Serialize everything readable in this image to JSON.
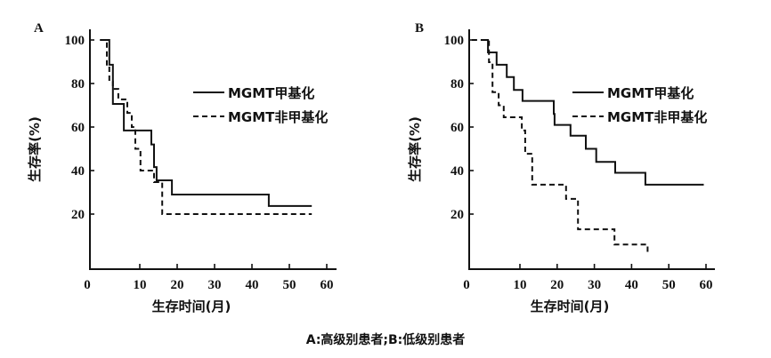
{
  "caption": "A:高级别患者;B:低级别患者",
  "chart_data": [
    {
      "type": "line",
      "subtype": "kaplan-meier-step",
      "panel": "A",
      "title": "",
      "xlabel": "生存时间(月)",
      "ylabel": "生存率(%)",
      "xticks": [
        0,
        10,
        20,
        30,
        40,
        50,
        60
      ],
      "yticks": [
        20,
        40,
        60,
        80,
        100
      ],
      "xlim": [
        0,
        62
      ],
      "ylim": [
        0,
        100
      ],
      "legend_position": "upper right",
      "series": [
        {
          "name": "MGMT甲基化",
          "style": "solid",
          "points": [
            [
              2.0,
              100
            ],
            [
              3.9,
              88.6
            ],
            [
              4.6,
              70.6
            ],
            [
              6.8,
              58.4
            ],
            [
              13.1,
              52
            ],
            [
              13.8,
              41.6
            ],
            [
              14.5,
              35.5
            ],
            [
              18.6,
              29
            ],
            [
              44.5,
              23.7
            ],
            [
              56,
              23.7
            ]
          ]
        },
        {
          "name": "MGMT非甲基化",
          "style": "dashed",
          "points": [
            [
              2.1,
              100
            ],
            [
              3.4,
              88
            ],
            [
              3.9,
              81
            ],
            [
              4.6,
              77.5
            ],
            [
              5.7,
              72.7
            ],
            [
              7.5,
              66.5
            ],
            [
              8.4,
              60
            ],
            [
              9.1,
              50
            ],
            [
              10.2,
              40
            ],
            [
              13.8,
              34.7
            ],
            [
              16,
              20
            ],
            [
              56,
              20
            ]
          ]
        }
      ]
    },
    {
      "type": "line",
      "subtype": "kaplan-meier-step",
      "panel": "B",
      "title": "",
      "xlabel": "生存时间(月)",
      "ylabel": "生存率(%)",
      "xticks": [
        0,
        10,
        20,
        30,
        40,
        50,
        60
      ],
      "yticks": [
        20,
        40,
        60,
        80,
        100
      ],
      "xlim": [
        0,
        62
      ],
      "ylim": [
        0,
        100
      ],
      "legend_position": "upper right",
      "series": [
        {
          "name": "MGMT甲基化",
          "style": "solid",
          "points": [
            [
              2.3,
              100
            ],
            [
              3.7,
              94.3
            ],
            [
              5.4,
              88.6
            ],
            [
              7.4,
              83
            ],
            [
              8.8,
              77
            ],
            [
              10.7,
              72
            ],
            [
              19.1,
              66
            ],
            [
              19.3,
              61
            ],
            [
              23.6,
              56
            ],
            [
              27.7,
              50
            ],
            [
              30.5,
              44
            ],
            [
              35.6,
              39
            ],
            [
              43.7,
              33.5
            ],
            [
              59.4,
              33.5
            ]
          ]
        },
        {
          "name": "MGMT非甲基化",
          "style": "dashed",
          "points": [
            [
              0.5,
              100
            ],
            [
              3.9,
              89.8
            ],
            [
              4.6,
              76
            ],
            [
              5.8,
              70
            ],
            [
              6.8,
              64.5
            ],
            [
              10.5,
              58.4
            ],
            [
              11.4,
              47.7
            ],
            [
              13.3,
              33.5
            ],
            [
              22.4,
              27
            ],
            [
              25.6,
              13
            ],
            [
              35.4,
              6
            ],
            [
              44.3,
              6
            ],
            [
              44.3,
              1.5
            ]
          ]
        }
      ]
    }
  ],
  "panels": {
    "A": {
      "label": "A",
      "legend": [
        "MGMT甲基化",
        "MGMT非甲基化"
      ]
    },
    "B": {
      "label": "B",
      "legend": [
        "MGMT甲基化",
        "MGMT非甲基化"
      ]
    }
  }
}
